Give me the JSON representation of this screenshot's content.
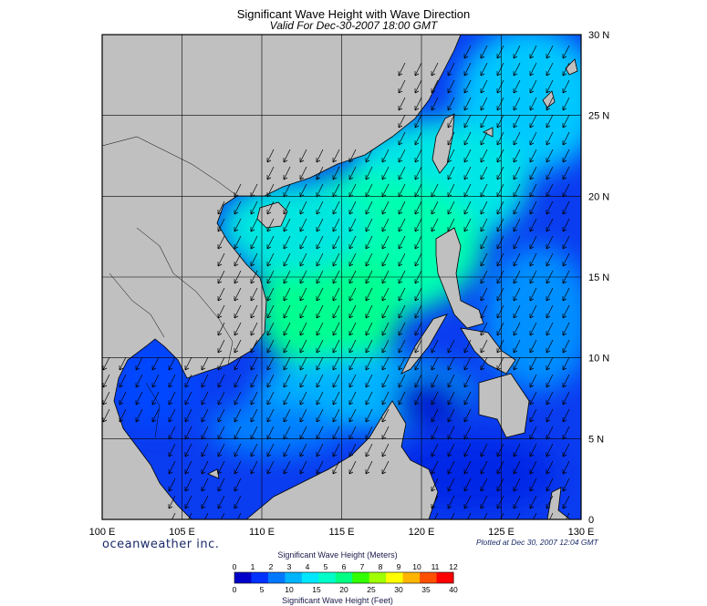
{
  "title": "Significant Wave Height with Wave Direction",
  "subtitle": "Valid For Dec-30-2007 18:00 GMT",
  "brand": "oceanweather inc.",
  "plotted": "Plotted at Dec 30, 2007 12:04 GMT",
  "map": {
    "lon_range": [
      100,
      130
    ],
    "lat_range": [
      0,
      30
    ],
    "lon_labels": [
      "100 E",
      "105 E",
      "110 E",
      "115 E",
      "120 E",
      "125 E",
      "130 E"
    ],
    "lat_labels": [
      "30 N",
      "25 N",
      "20 N",
      "15 N",
      "10 N",
      "5 N",
      "0"
    ],
    "land_color": "#c0c0c0",
    "arrow_color": "#000000",
    "wave_direction": "toward southwest"
  },
  "colorbar": {
    "title_meters": "Significant Wave Height (Meters)",
    "title_feet": "Significant Wave Height (Feet)",
    "meter_ticks": [
      "0",
      "1",
      "2",
      "3",
      "4",
      "5",
      "6",
      "7",
      "8",
      "9",
      "10",
      "11",
      "12"
    ],
    "feet_ticks": [
      "0",
      "5",
      "10",
      "15",
      "20",
      "25",
      "30",
      "35",
      "40"
    ],
    "colors": [
      "#0000c8",
      "#0032ff",
      "#0078ff",
      "#00b4ff",
      "#00e6ff",
      "#00ffc8",
      "#00ff82",
      "#32ff00",
      "#a0ff00",
      "#ffff00",
      "#ffb400",
      "#ff5000",
      "#ff0000"
    ]
  }
}
